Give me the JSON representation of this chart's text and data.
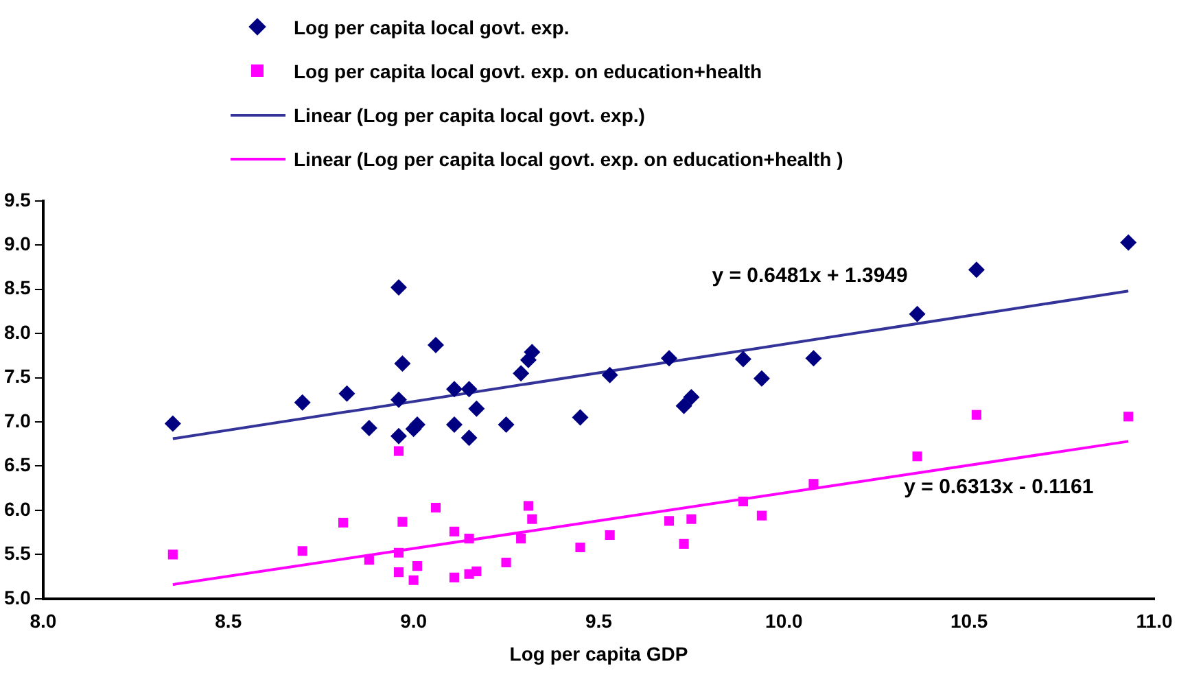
{
  "chart_data": {
    "type": "scatter",
    "xlabel": "Log per capita GDP",
    "legend": "top",
    "grid": false,
    "xlim": [
      8.0,
      11.0
    ],
    "xticks": [
      {
        "value": 8,
        "label": "8.0"
      },
      {
        "value": 8.5,
        "label": "8.5"
      },
      {
        "value": 9,
        "label": "9.0"
      },
      {
        "value": 9.5,
        "label": "9.5"
      },
      {
        "value": 10,
        "label": "10.0"
      },
      {
        "value": 10.5,
        "label": "10.5"
      },
      {
        "value": 11,
        "label": "11.0"
      }
    ],
    "ylim": [
      5.0,
      9.5
    ],
    "yticks": [
      {
        "value": 5,
        "label": "5.0"
      },
      {
        "value": 5.5,
        "label": "5.5"
      },
      {
        "value": 6,
        "label": "6.0"
      },
      {
        "value": 6.5,
        "label": "6.5"
      },
      {
        "value": 7,
        "label": "7.0"
      },
      {
        "value": 7.5,
        "label": "7.5"
      },
      {
        "value": 8,
        "label": "8.0"
      },
      {
        "value": 8.5,
        "label": "8.5"
      },
      {
        "value": 9,
        "label": "9.0"
      },
      {
        "value": 9.5,
        "label": "9.5"
      }
    ],
    "series": [
      {
        "name": "Log per capita local govt. exp.",
        "marker": "diamond",
        "color": "#000080",
        "x": [
          8.35,
          8.7,
          8.82,
          8.88,
          8.96,
          8.96,
          8.96,
          8.97,
          9.0,
          9.01,
          9.06,
          9.11,
          9.11,
          9.15,
          9.15,
          9.17,
          9.25,
          9.29,
          9.31,
          9.32,
          9.45,
          9.53,
          9.69,
          9.73,
          9.75,
          9.89,
          9.94,
          10.08,
          10.36,
          10.52,
          10.93
        ],
        "values": [
          6.98,
          7.22,
          7.32,
          6.93,
          8.52,
          7.25,
          6.84,
          7.66,
          6.92,
          6.97,
          7.87,
          7.37,
          6.97,
          7.37,
          6.82,
          7.15,
          6.97,
          7.55,
          7.7,
          7.79,
          7.05,
          7.53,
          7.72,
          7.18,
          7.28,
          7.71,
          7.49,
          7.72,
          8.22,
          8.72,
          9.03
        ]
      },
      {
        "name": "Log per capita local govt. exp. on education+health",
        "marker": "square",
        "color": "#ff00ff",
        "x": [
          8.35,
          8.7,
          8.81,
          8.88,
          8.96,
          8.96,
          8.96,
          8.97,
          9.0,
          9.01,
          9.06,
          9.11,
          9.11,
          9.15,
          9.15,
          9.17,
          9.25,
          9.29,
          9.31,
          9.32,
          9.45,
          9.53,
          9.69,
          9.73,
          9.75,
          9.89,
          9.94,
          10.08,
          10.36,
          10.52,
          10.93
        ],
        "values": [
          5.5,
          5.54,
          5.86,
          5.44,
          6.67,
          5.52,
          5.3,
          5.87,
          5.21,
          5.37,
          6.03,
          5.24,
          5.76,
          5.68,
          5.28,
          5.31,
          5.41,
          5.68,
          6.05,
          5.9,
          5.58,
          5.72,
          5.88,
          5.62,
          5.9,
          6.1,
          5.94,
          6.3,
          6.61,
          7.08,
          7.06
        ]
      },
      {
        "name": "Linear (Log per capita local govt. exp.)",
        "type": "line",
        "marker": "none",
        "color": "#333399",
        "x": [
          8.35,
          10.93
        ],
        "values": [
          6.81,
          8.48
        ]
      },
      {
        "name": "Linear (Log per capita local govt. exp. on education+health )",
        "type": "line",
        "marker": "none",
        "color": "#ff00ff",
        "x": [
          8.35,
          10.93
        ],
        "values": [
          5.16,
          6.78
        ]
      }
    ],
    "annotations": [
      "y = 0.6481x + 1.3949",
      "y = 0.6313x - 0.1161"
    ]
  }
}
